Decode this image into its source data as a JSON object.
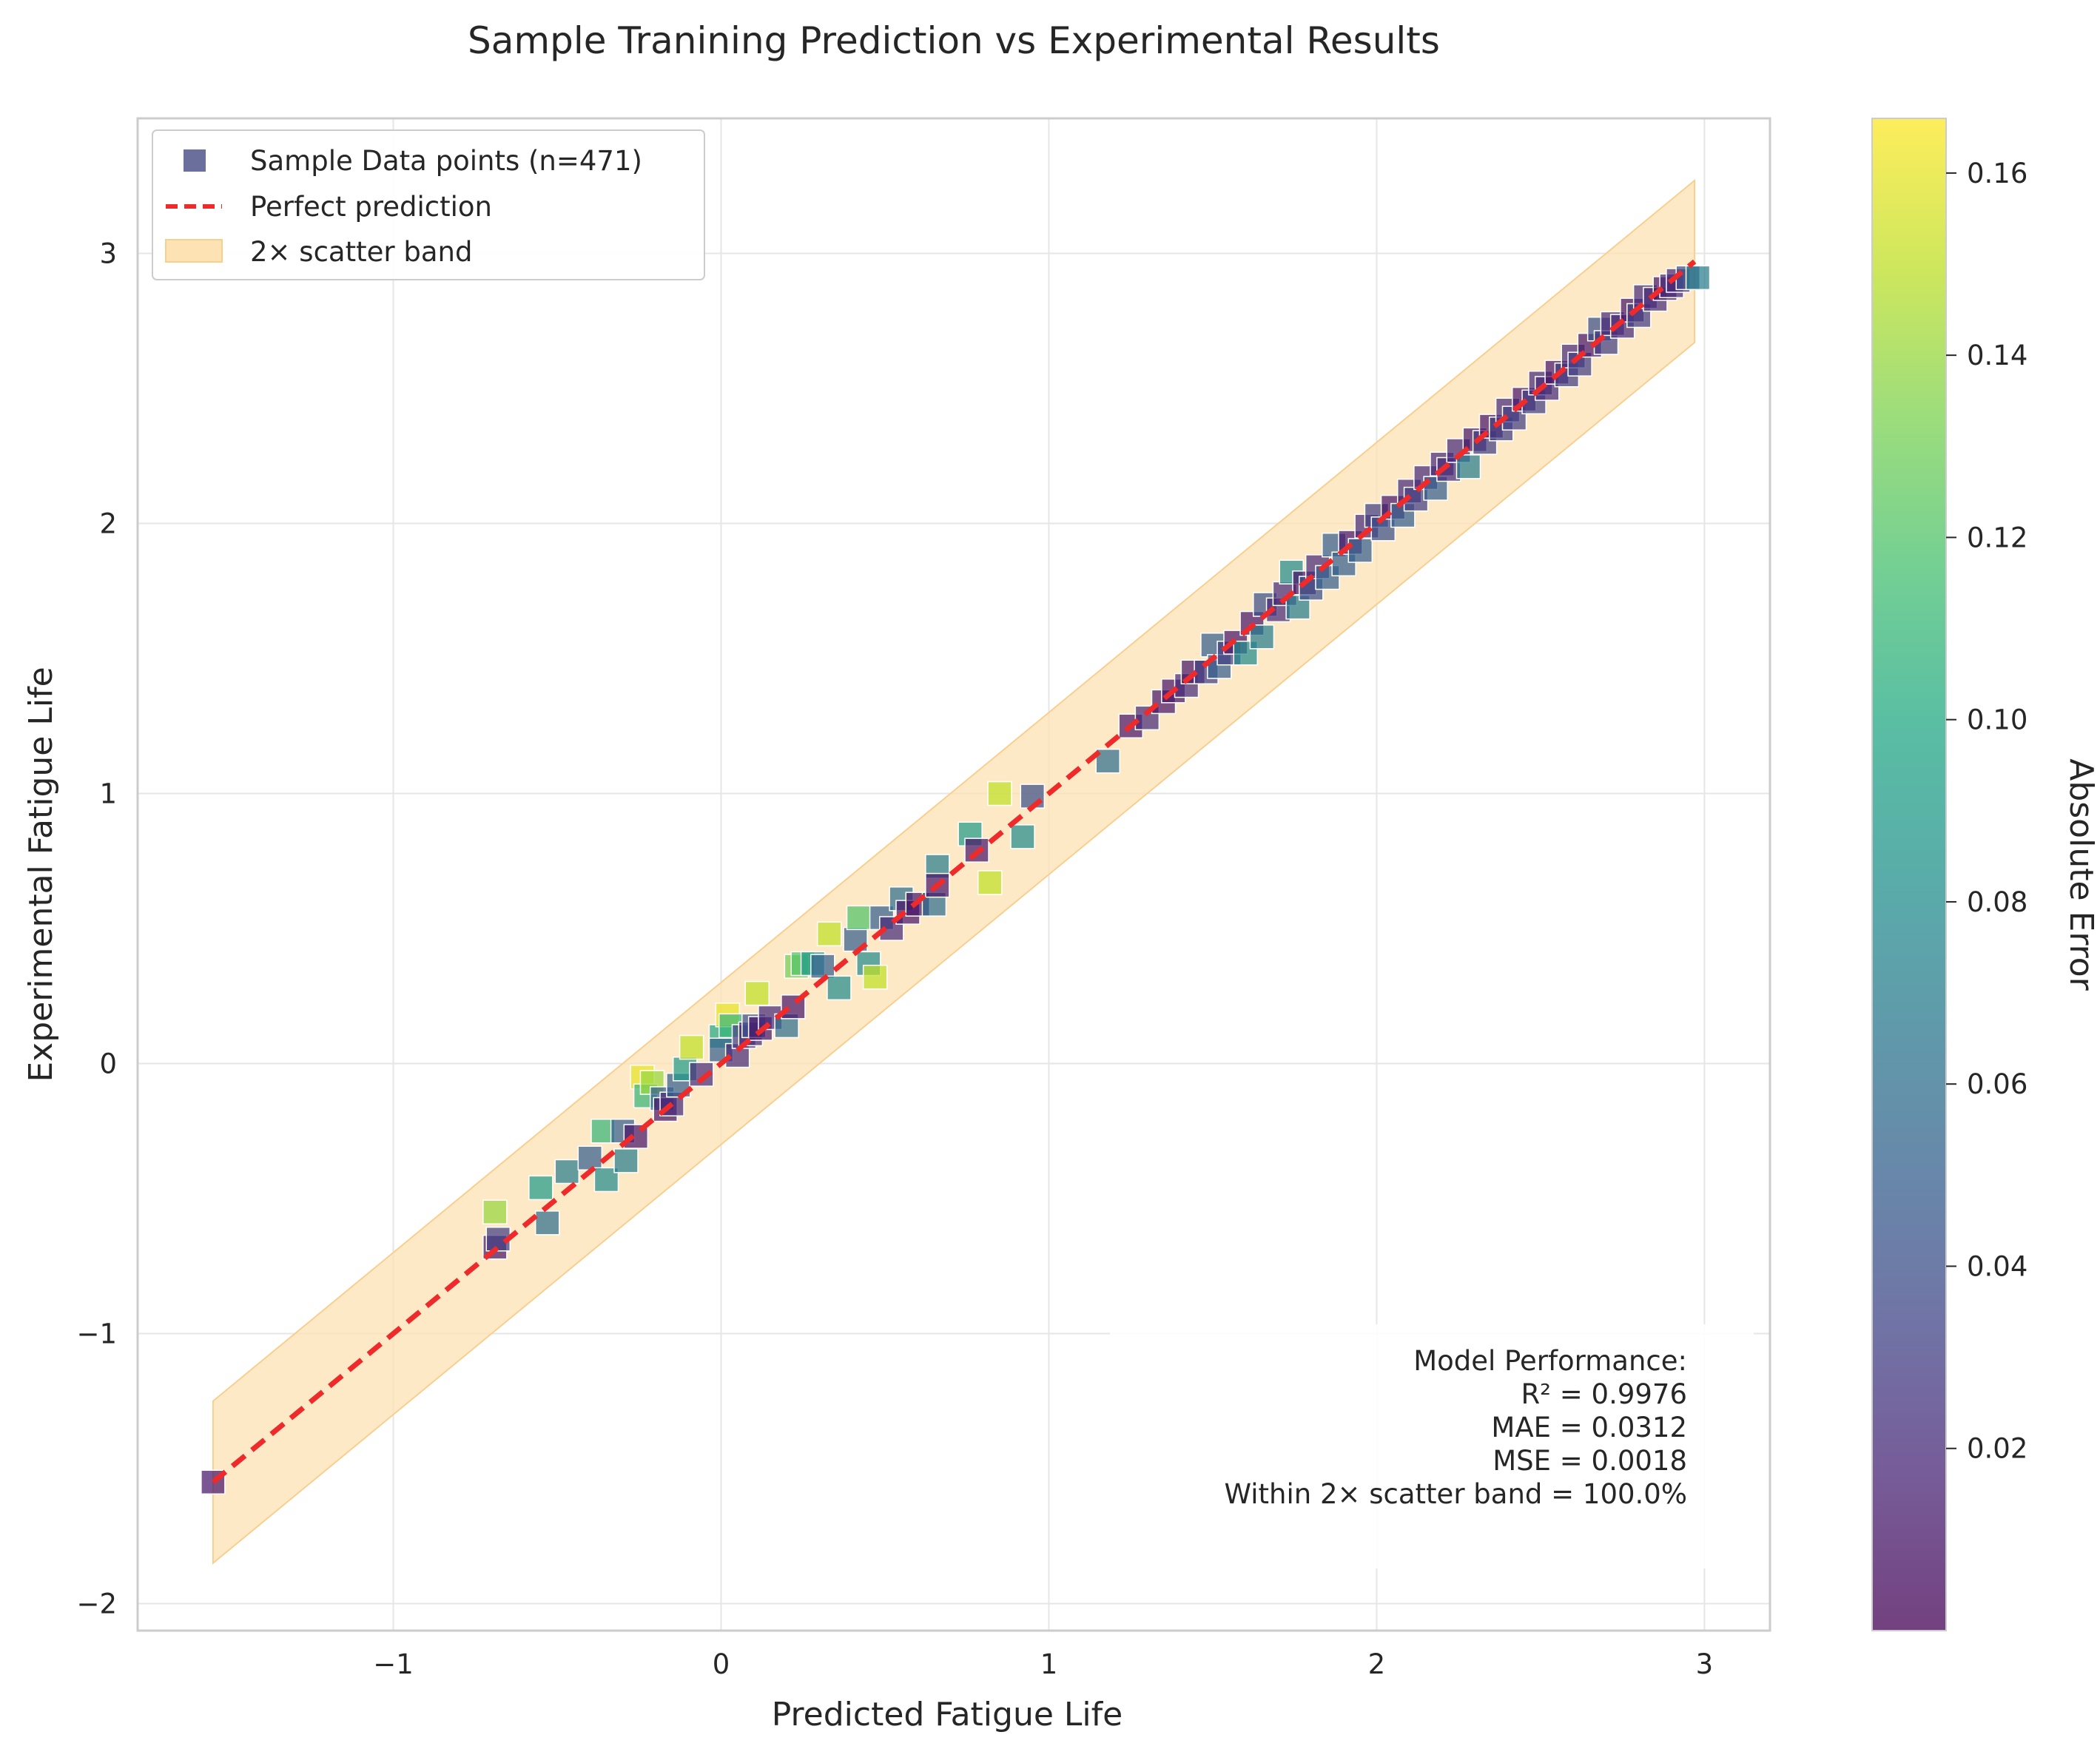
{
  "chart_data": {
    "type": "scatter",
    "title": "Sample Tranining Prediction vs Experimental Results",
    "xlabel": "Predicted Fatigue Life",
    "ylabel": "Experimental Fatigue Life",
    "xlim": [
      -1.78,
      3.2
    ],
    "ylim": [
      -2.1,
      3.5
    ],
    "xticks": [
      -1,
      0,
      1,
      2,
      3
    ],
    "xtick_labels": [
      "−1",
      "0",
      "1",
      "2",
      "3"
    ],
    "yticks": [
      -2,
      -1,
      0,
      1,
      2,
      3
    ],
    "ytick_labels": [
      "−2",
      "−1",
      "0",
      "1",
      "2",
      "3"
    ],
    "grid": true,
    "legend_position": "top-left",
    "legend": [
      {
        "label": "Sample Data points (n=471)",
        "kind": "marker"
      },
      {
        "label": "Perfect prediction",
        "kind": "line"
      },
      {
        "label": "2× scatter band",
        "kind": "band"
      }
    ],
    "perfect_line": {
      "x": [
        -1.55,
        2.97
      ],
      "y": [
        -1.55,
        2.97
      ],
      "color": "#ee2a2a"
    },
    "scatter_band": {
      "x": [
        -1.55,
        2.97
      ],
      "offset": 0.3,
      "color": "#fde2b4"
    },
    "colorbar": {
      "label": "Absolute Error",
      "min": 0.0,
      "max": 0.166,
      "ticks": [
        0.02,
        0.04,
        0.06,
        0.08,
        0.1,
        0.12,
        0.14,
        0.16
      ],
      "tick_labels": [
        "0.02",
        "0.04",
        "0.06",
        "0.08",
        "0.10",
        "0.12",
        "0.14",
        "0.16"
      ],
      "colormap": "viridis"
    },
    "stats": {
      "heading": "Model Performance:",
      "lines": [
        "R² = 0.9976",
        "MAE = 0.0312",
        "MSE = 0.0018",
        "Within 2× scatter band = 100.0%"
      ]
    },
    "series": [
      {
        "name": "Sample Data points (n=471)",
        "points": [
          [
            -1.55,
            -1.55,
            0.01
          ],
          [
            -0.69,
            -0.55,
            0.14
          ],
          [
            -0.69,
            -0.68,
            0.01
          ],
          [
            -0.68,
            -0.65,
            0.03
          ],
          [
            -0.55,
            -0.46,
            0.09
          ],
          [
            -0.53,
            -0.59,
            0.06
          ],
          [
            -0.47,
            -0.4,
            0.07
          ],
          [
            -0.4,
            -0.35,
            0.05
          ],
          [
            -0.36,
            -0.25,
            0.11
          ],
          [
            -0.35,
            -0.43,
            0.08
          ],
          [
            -0.3,
            -0.25,
            0.05
          ],
          [
            -0.29,
            -0.36,
            0.07
          ],
          [
            -0.26,
            -0.27,
            0.01
          ],
          [
            -0.24,
            -0.05,
            0.16
          ],
          [
            -0.23,
            -0.12,
            0.11
          ],
          [
            -0.21,
            -0.07,
            0.14
          ],
          [
            -0.18,
            -0.13,
            0.05
          ],
          [
            -0.17,
            -0.17,
            0.01
          ],
          [
            -0.15,
            -0.15,
            0.02
          ],
          [
            -0.13,
            -0.08,
            0.05
          ],
          [
            -0.11,
            -0.02,
            0.09
          ],
          [
            -0.09,
            0.06,
            0.15
          ],
          [
            -0.06,
            -0.04,
            0.02
          ],
          [
            0.0,
            0.1,
            0.1
          ],
          [
            0.0,
            0.05,
            0.05
          ],
          [
            0.02,
            0.18,
            0.16
          ],
          [
            0.03,
            0.14,
            0.11
          ],
          [
            0.05,
            0.03,
            0.02
          ],
          [
            0.07,
            0.1,
            0.03
          ],
          [
            0.09,
            0.11,
            0.02
          ],
          [
            0.1,
            0.14,
            0.04
          ],
          [
            0.11,
            0.26,
            0.15
          ],
          [
            0.12,
            0.13,
            0.01
          ],
          [
            0.15,
            0.17,
            0.02
          ],
          [
            0.2,
            0.14,
            0.06
          ],
          [
            0.22,
            0.21,
            0.01
          ],
          [
            0.23,
            0.36,
            0.13
          ],
          [
            0.25,
            0.37,
            0.12
          ],
          [
            0.28,
            0.37,
            0.09
          ],
          [
            0.31,
            0.36,
            0.05
          ],
          [
            0.33,
            0.48,
            0.15
          ],
          [
            0.36,
            0.28,
            0.08
          ],
          [
            0.41,
            0.46,
            0.05
          ],
          [
            0.42,
            0.54,
            0.12
          ],
          [
            0.45,
            0.37,
            0.08
          ],
          [
            0.47,
            0.32,
            0.15
          ],
          [
            0.49,
            0.54,
            0.05
          ],
          [
            0.52,
            0.5,
            0.02
          ],
          [
            0.55,
            0.61,
            0.06
          ],
          [
            0.57,
            0.56,
            0.01
          ],
          [
            0.6,
            0.59,
            0.01
          ],
          [
            0.65,
            0.59,
            0.06
          ],
          [
            0.66,
            0.73,
            0.07
          ],
          [
            0.66,
            0.66,
            0.01
          ],
          [
            0.76,
            0.85,
            0.09
          ],
          [
            0.78,
            0.79,
            0.01
          ],
          [
            0.82,
            0.67,
            0.15
          ],
          [
            0.85,
            1.0,
            0.15
          ],
          [
            0.92,
            0.84,
            0.08
          ],
          [
            0.95,
            0.99,
            0.04
          ],
          [
            1.18,
            1.12,
            0.06
          ],
          [
            1.25,
            1.25,
            0.01
          ],
          [
            1.3,
            1.28,
            0.02
          ],
          [
            1.35,
            1.34,
            0.01
          ],
          [
            1.38,
            1.38,
            0.01
          ],
          [
            1.42,
            1.4,
            0.02
          ],
          [
            1.44,
            1.45,
            0.01
          ],
          [
            1.48,
            1.45,
            0.03
          ],
          [
            1.5,
            1.55,
            0.05
          ],
          [
            1.52,
            1.47,
            0.05
          ],
          [
            1.55,
            1.52,
            0.03
          ],
          [
            1.57,
            1.56,
            0.01
          ],
          [
            1.6,
            1.52,
            0.08
          ],
          [
            1.62,
            1.63,
            0.01
          ],
          [
            1.65,
            1.58,
            0.07
          ],
          [
            1.66,
            1.7,
            0.04
          ],
          [
            1.7,
            1.68,
            0.02
          ],
          [
            1.72,
            1.74,
            0.02
          ],
          [
            1.74,
            1.82,
            0.08
          ],
          [
            1.76,
            1.69,
            0.07
          ],
          [
            1.78,
            1.78,
            0.01
          ],
          [
            1.8,
            1.76,
            0.04
          ],
          [
            1.82,
            1.84,
            0.02
          ],
          [
            1.85,
            1.8,
            0.05
          ],
          [
            1.87,
            1.92,
            0.05
          ],
          [
            1.9,
            1.85,
            0.05
          ],
          [
            1.92,
            1.93,
            0.01
          ],
          [
            1.95,
            1.9,
            0.05
          ],
          [
            1.97,
            1.99,
            0.02
          ],
          [
            2.0,
            2.03,
            0.03
          ],
          [
            2.02,
            1.98,
            0.04
          ],
          [
            2.05,
            2.06,
            0.01
          ],
          [
            2.08,
            2.03,
            0.05
          ],
          [
            2.1,
            2.12,
            0.02
          ],
          [
            2.12,
            2.09,
            0.03
          ],
          [
            2.15,
            2.17,
            0.02
          ],
          [
            2.18,
            2.13,
            0.05
          ],
          [
            2.2,
            2.22,
            0.02
          ],
          [
            2.22,
            2.2,
            0.02
          ],
          [
            2.25,
            2.27,
            0.02
          ],
          [
            2.28,
            2.21,
            0.07
          ],
          [
            2.3,
            2.31,
            0.01
          ],
          [
            2.33,
            2.3,
            0.03
          ],
          [
            2.35,
            2.36,
            0.01
          ],
          [
            2.38,
            2.35,
            0.03
          ],
          [
            2.4,
            2.42,
            0.02
          ],
          [
            2.42,
            2.39,
            0.03
          ],
          [
            2.45,
            2.46,
            0.01
          ],
          [
            2.48,
            2.45,
            0.03
          ],
          [
            2.5,
            2.52,
            0.02
          ],
          [
            2.52,
            2.5,
            0.02
          ],
          [
            2.55,
            2.56,
            0.01
          ],
          [
            2.58,
            2.55,
            0.03
          ],
          [
            2.6,
            2.62,
            0.02
          ],
          [
            2.62,
            2.59,
            0.03
          ],
          [
            2.65,
            2.66,
            0.01
          ],
          [
            2.68,
            2.72,
            0.04
          ],
          [
            2.7,
            2.67,
            0.03
          ],
          [
            2.72,
            2.74,
            0.02
          ],
          [
            2.75,
            2.73,
            0.02
          ],
          [
            2.78,
            2.79,
            0.01
          ],
          [
            2.8,
            2.77,
            0.03
          ],
          [
            2.82,
            2.84,
            0.02
          ],
          [
            2.85,
            2.83,
            0.02
          ],
          [
            2.88,
            2.87,
            0.01
          ],
          [
            2.9,
            2.88,
            0.02
          ],
          [
            2.92,
            2.9,
            0.02
          ],
          [
            2.95,
            2.91,
            0.04
          ],
          [
            2.98,
            2.91,
            0.07
          ]
        ]
      }
    ]
  }
}
